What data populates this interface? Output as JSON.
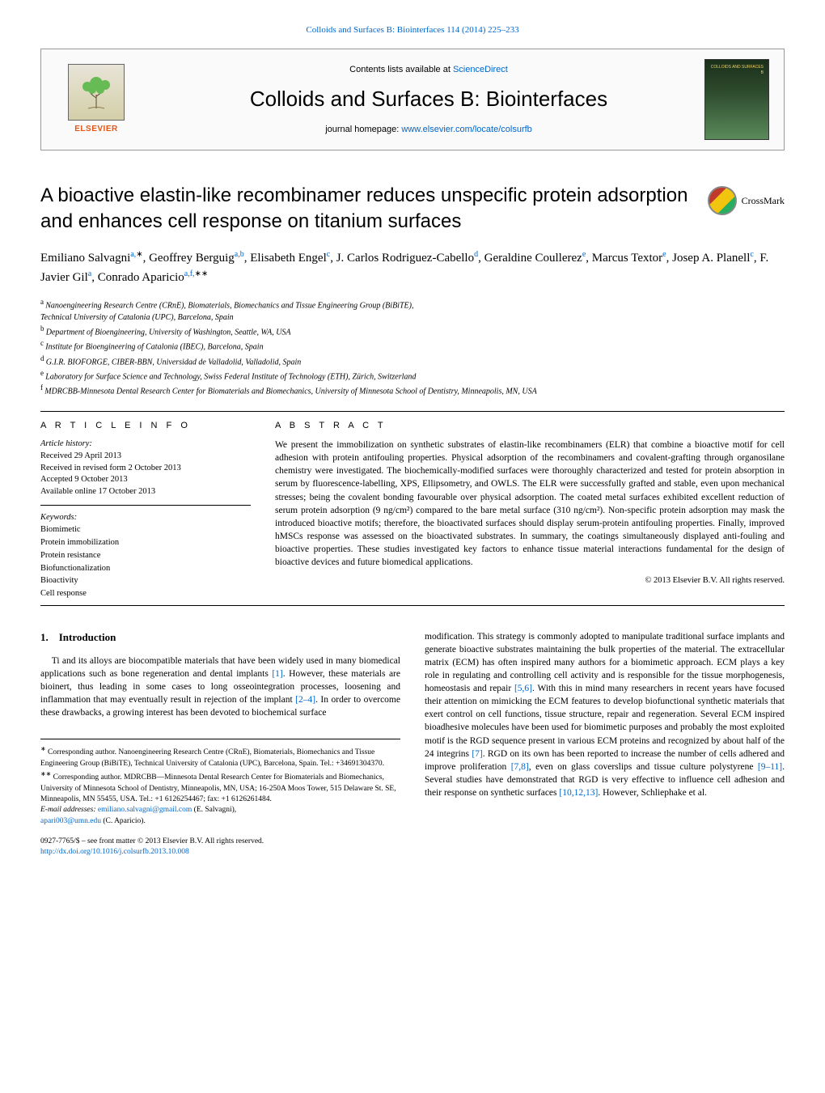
{
  "top_citation": {
    "text": "Colloids and Surfaces B: Biointerfaces 114 (2014) 225–233",
    "color": "#0066cc"
  },
  "header": {
    "contents_prefix": "Contents lists available at ",
    "contents_link": "ScienceDirect",
    "journal_title": "Colloids and Surfaces B: Biointerfaces",
    "homepage_prefix": "journal homepage: ",
    "homepage_link": "www.elsevier.com/locate/colsurfb",
    "publisher_name": "ELSEVIER",
    "cover_label": "COLLOIDS AND SURFACES B"
  },
  "article": {
    "title": "A bioactive elastin-like recombinamer reduces unspecific protein adsorption and enhances cell response on titanium surfaces",
    "crossmark_label": "CrossMark",
    "authors_html": "Emiliano Salvagni",
    "authors": [
      {
        "name": "Emiliano Salvagni",
        "affs": "a,",
        "corr": "∗"
      },
      {
        "name": "Geoffrey Berguig",
        "affs": "a,b",
        "sep": ", "
      },
      {
        "name": "Elisabeth Engel",
        "affs": "c",
        "sep": ", "
      },
      {
        "name": "J. Carlos Rodriguez-Cabello",
        "affs": "d",
        "sep": ", "
      },
      {
        "name": "Geraldine Coullerez",
        "affs": "e",
        "sep": ", "
      },
      {
        "name": "Marcus Textor",
        "affs": "e",
        "sep": ", "
      },
      {
        "name": "Josep A. Planell",
        "affs": "c",
        "sep": ", "
      },
      {
        "name": "F. Javier Gil",
        "affs": "a",
        "sep": ", "
      },
      {
        "name": "Conrado Aparicio",
        "affs": "a,f,",
        "corr": "∗∗",
        "sep": ", "
      }
    ],
    "affiliations": [
      {
        "sup": "a",
        "text": "Nanoengineering Research Centre (CRnE), Biomaterials, Biomechanics and Tissue Engineering Group (BiBiTE),"
      },
      {
        "sup": "",
        "text": "Technical University of Catalonia (UPC), Barcelona, Spain"
      },
      {
        "sup": "b",
        "text": "Department of Bioengineering, University of Washington, Seattle, WA, USA"
      },
      {
        "sup": "c",
        "text": "Institute for Bioengineering of Catalonia (IBEC), Barcelona, Spain"
      },
      {
        "sup": "d",
        "text": "G.I.R. BIOFORGE, CIBER-BBN, Universidad de Valladolid, Valladolid, Spain"
      },
      {
        "sup": "e",
        "text": "Laboratory for Surface Science and Technology, Swiss Federal Institute of Technology (ETH), Zürich, Switzerland"
      },
      {
        "sup": "f",
        "text": "MDRCBB-Minnesota Dental Research Center for Biomaterials and Biomechanics, University of Minnesota School of Dentistry, Minneapolis, MN, USA"
      }
    ]
  },
  "article_info": {
    "header": "A R T I C L E   I N F O",
    "history_label": "Article history:",
    "history": [
      "Received 29 April 2013",
      "Received in revised form 2 October 2013",
      "Accepted 9 October 2013",
      "Available online 17 October 2013"
    ],
    "keywords_label": "Keywords:",
    "keywords": [
      "Biomimetic",
      "Protein immobilization",
      "Protein resistance",
      "Biofunctionalization",
      "Bioactivity",
      "Cell response"
    ]
  },
  "abstract": {
    "header": "A B S T R A C T",
    "text": "We present the immobilization on synthetic substrates of elastin-like recombinamers (ELR) that combine a bioactive motif for cell adhesion with protein antifouling properties. Physical adsorption of the recombinamers and covalent-grafting through organosilane chemistry were investigated. The biochemically-modified surfaces were thoroughly characterized and tested for protein absorption in serum by fluorescence-labelling, XPS, Ellipsometry, and OWLS. The ELR were successfully grafted and stable, even upon mechanical stresses; being the covalent bonding favourable over physical adsorption. The coated metal surfaces exhibited excellent reduction of serum protein adsorption (9 ng/cm²) compared to the bare metal surface (310 ng/cm²). Non-specific protein adsorption may mask the introduced bioactive motifs; therefore, the bioactivated surfaces should display serum-protein antifouling properties. Finally, improved hMSCs response was assessed on the bioactivated substrates. In summary, the coatings simultaneously displayed anti-fouling and bioactive properties. These studies investigated key factors to enhance tissue material interactions fundamental for the design of bioactive devices and future biomedical applications.",
    "copyright": "© 2013 Elsevier B.V. All rights reserved."
  },
  "body": {
    "section_number": "1.",
    "section_title": "Introduction",
    "col1_para1": "Ti and its alloys are biocompatible materials that have been widely used in many biomedical applications such as bone regeneration and dental implants ",
    "col1_ref1": "[1]",
    "col1_para1b": ". However, these materials are bioinert, thus leading in some cases to long osseointegration processes, loosening and inflammation that may eventually result in rejection of the implant ",
    "col1_ref2": "[2–4]",
    "col1_para1c": ". In order to overcome these drawbacks, a growing interest has been devoted to biochemical surface",
    "col2_para1a": "modification. This strategy is commonly adopted to manipulate traditional surface implants and generate bioactive substrates maintaining the bulk properties of the material. The extracellular matrix (ECM) has often inspired many authors for a biomimetic approach. ECM plays a key role in regulating and controlling cell activity and is responsible for the tissue morphogenesis, homeostasis and repair ",
    "col2_ref1": "[5,6]",
    "col2_para1b": ". With this in mind many researchers in recent years have focused their attention on mimicking the ECM features to develop biofunctional synthetic materials that exert control on cell functions, tissue structure, repair and regeneration. Several ECM inspired bioadhesive molecules have been used for biomimetic purposes and probably the most exploited motif is the RGD sequence present in various ECM proteins and recognized by about half of the 24 integrins ",
    "col2_ref2": "[7]",
    "col2_para1c": ". RGD on its own has been reported to increase the number of cells adhered and improve proliferation ",
    "col2_ref3": "[7,8]",
    "col2_para1d": ", even on glass coverslips and tissue culture polystyrene ",
    "col2_ref4": "[9–11]",
    "col2_para1e": ". Several studies have demonstrated that RGD is very effective to influence cell adhesion and their response on synthetic surfaces ",
    "col2_ref5": "[10,12,13]",
    "col2_para1f": ". However, Schliephake et al."
  },
  "footnotes": {
    "note1_sym": "∗",
    "note1": "Corresponding author. Nanoengineering Research Centre (CRnE), Biomaterials, Biomechanics and Tissue Engineering Group (BiBiTE), Technical University of Catalonia (UPC), Barcelona, Spain. Tel.: +34691304370.",
    "note2_sym": "∗∗",
    "note2": "Corresponding author. MDRCBB—Minnesota Dental Research Center for Biomaterials and Biomechanics, University of Minnesota School of Dentistry, Minneapolis, MN, USA; 16-250A Moos Tower, 515 Delaware St. SE, Minneapolis, MN 55455, USA. Tel.: +1 6126254467; fax: +1 6126261484.",
    "email_label": "E-mail addresses: ",
    "email1": "emiliano.salvagni@gmail.com",
    "email1_who": " (E. Salvagni),",
    "email2": "apari003@umn.edu",
    "email2_who": " (C. Aparicio)."
  },
  "footer": {
    "issn_line": "0927-7765/$ – see front matter © 2013 Elsevier B.V. All rights reserved.",
    "doi": "http://dx.doi.org/10.1016/j.colsurfb.2013.10.008"
  },
  "colors": {
    "link": "#0066cc",
    "elsevier_orange": "#e85412"
  }
}
